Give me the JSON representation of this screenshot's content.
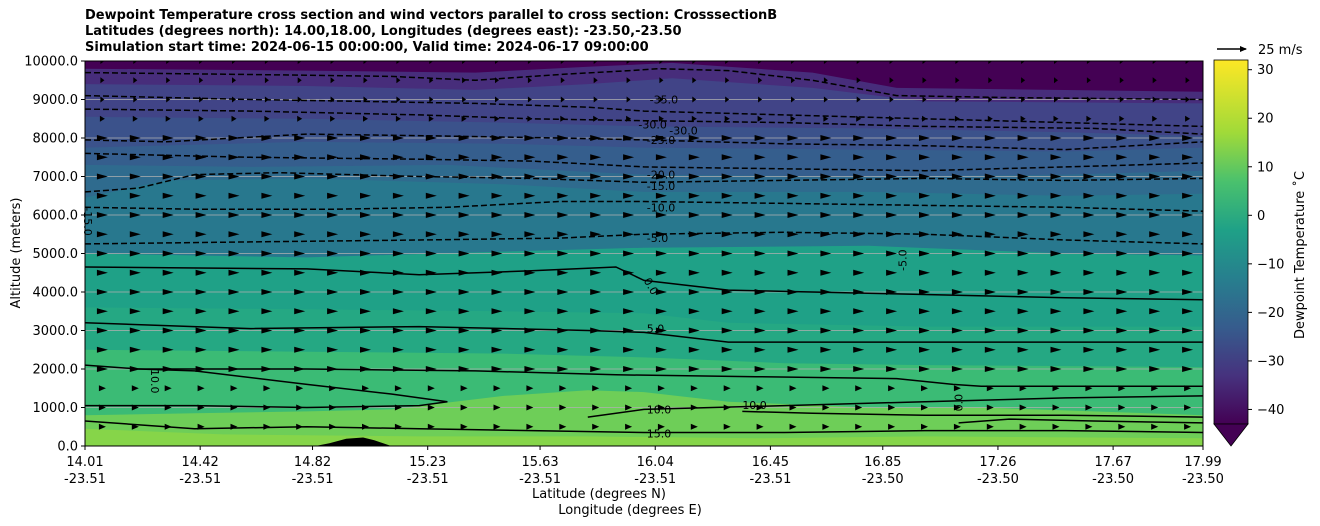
{
  "titles": {
    "line1": "Dewpoint Temperature cross section and wind vectors parallel to cross section: CrosssectionB",
    "line2": "Latitudes (degrees north): 14.00,18.00, Longitudes (degrees east): -23.50,-23.50",
    "line3": "Simulation start time: 2024-06-15 00:00:00, Valid time: 2024-06-17 09:00:00"
  },
  "chart_data": {
    "type": "heatmap",
    "subtype": "filled contour cross section with contour lines and wind vectors",
    "ylabel": "Altitude (meters)",
    "xlabel_lat": "Latitude (degrees N)",
    "xlabel_lon": "Longitude (degrees E)",
    "ylim": [
      0,
      10000
    ],
    "yticks": [
      "0.0",
      "1000.0",
      "2000.0",
      "3000.0",
      "4000.0",
      "5000.0",
      "6000.0",
      "7000.0",
      "8000.0",
      "9000.0",
      "10000.0"
    ],
    "ytick_values": [
      0,
      1000,
      2000,
      3000,
      4000,
      5000,
      6000,
      7000,
      8000,
      9000,
      10000
    ],
    "xlim_lat": [
      14.01,
      17.99
    ],
    "xticks_lat": [
      "14.01",
      "14.42",
      "14.82",
      "15.23",
      "15.63",
      "16.04",
      "16.45",
      "16.85",
      "17.26",
      "17.67",
      "17.99"
    ],
    "xticks_lat_values": [
      14.01,
      14.42,
      14.82,
      15.23,
      15.63,
      16.04,
      16.45,
      16.85,
      17.26,
      17.67,
      17.99
    ],
    "xticks_lon": [
      "-23.51",
      "-23.51",
      "-23.51",
      "-23.51",
      "-23.51",
      "-23.51",
      "-23.51",
      "-23.50",
      "-23.50",
      "-23.50",
      "-23.50"
    ],
    "grid": "horizontal",
    "colorbar": {
      "label": "Dewpoint Temperature ˚C",
      "range": [
        -43,
        32
      ],
      "ticks": [
        "−40",
        "−30",
        "−20",
        "−10",
        "0",
        "10",
        "20",
        "30"
      ],
      "tick_values": [
        -40,
        -30,
        -20,
        -10,
        0,
        10,
        20,
        30
      ],
      "colormap": "viridis",
      "extend": "min"
    },
    "quiver_key": {
      "label": "25 m/s",
      "speed": 25
    },
    "wind": {
      "direction": "parallel, toward increasing latitude",
      "typical_speed_ms": 8
    },
    "contour_levels": [
      "-35.0",
      "-30.0",
      "-25.0",
      "-20.0",
      "-15.0",
      "-10.0",
      "-5.0",
      "0.0",
      "5.0",
      "10.0",
      "15.0"
    ],
    "contour_labels": [
      {
        "text": "-35.0",
        "lat": 16.02,
        "alt": 9000
      },
      {
        "text": "-30.0",
        "lat": 15.98,
        "alt": 8350
      },
      {
        "text": "-30.0",
        "lat": 16.09,
        "alt": 8200
      },
      {
        "text": "-25.0",
        "lat": 16.01,
        "alt": 7950
      },
      {
        "text": "-20.0",
        "lat": 16.01,
        "alt": 7050
      },
      {
        "text": "-15.0",
        "lat": 16.01,
        "alt": 6750
      },
      {
        "text": "-10.0",
        "lat": 16.01,
        "alt": 6200
      },
      {
        "text": "-5.0",
        "lat": 16.01,
        "alt": 5400
      },
      {
        "text": "-5.0",
        "lat": 16.92,
        "alt": 4550
      },
      {
        "text": "-15.0",
        "lat": 14.02,
        "alt": 6200
      },
      {
        "text": "0.0",
        "lat": 16.01,
        "alt": 4350
      },
      {
        "text": "5.0",
        "lat": 16.01,
        "alt": 3050
      },
      {
        "text": "10.0",
        "lat": 14.26,
        "alt": 2000
      },
      {
        "text": "10.0",
        "lat": 16.01,
        "alt": 950
      },
      {
        "text": "10.0",
        "lat": 16.35,
        "alt": 1070
      },
      {
        "text": "0.0",
        "lat": 17.12,
        "alt": 900
      },
      {
        "text": "15.0",
        "lat": 16.01,
        "alt": 330
      }
    ]
  }
}
